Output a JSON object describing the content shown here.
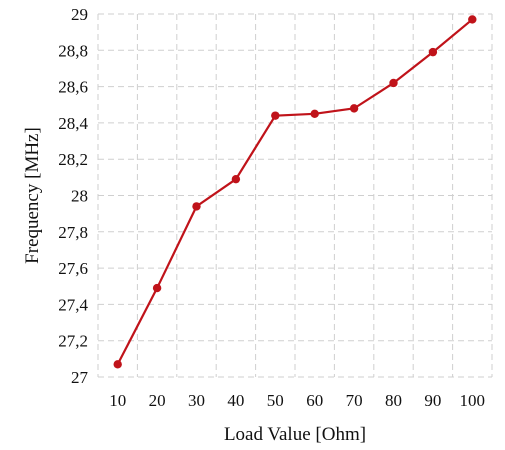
{
  "chart_data": {
    "type": "line",
    "title": "",
    "xlabel": "Load Value  [Ohm]",
    "ylabel": "Frequency [MHz]",
    "x": [
      10,
      20,
      30,
      40,
      50,
      60,
      70,
      80,
      90,
      100
    ],
    "x_tick_labels": [
      "10",
      "20",
      "30",
      "40",
      "50",
      "60",
      "70",
      "80",
      "90",
      "100"
    ],
    "ylim": [
      27,
      29
    ],
    "y_ticks": [
      27,
      27.2,
      27.4,
      27.6,
      27.8,
      28,
      28.2,
      28.4,
      28.6,
      28.8,
      29
    ],
    "y_tick_labels": [
      "27",
      "27,2",
      "27,4",
      "27,6",
      "27,8",
      "28",
      "28,2",
      "28,4",
      "28,6",
      "28,8",
      "29"
    ],
    "grid": true,
    "series": [
      {
        "color": "#c0131a",
        "values": [
          27.07,
          27.49,
          27.94,
          28.09,
          28.44,
          28.45,
          28.48,
          28.62,
          28.79,
          28.97
        ]
      }
    ]
  }
}
